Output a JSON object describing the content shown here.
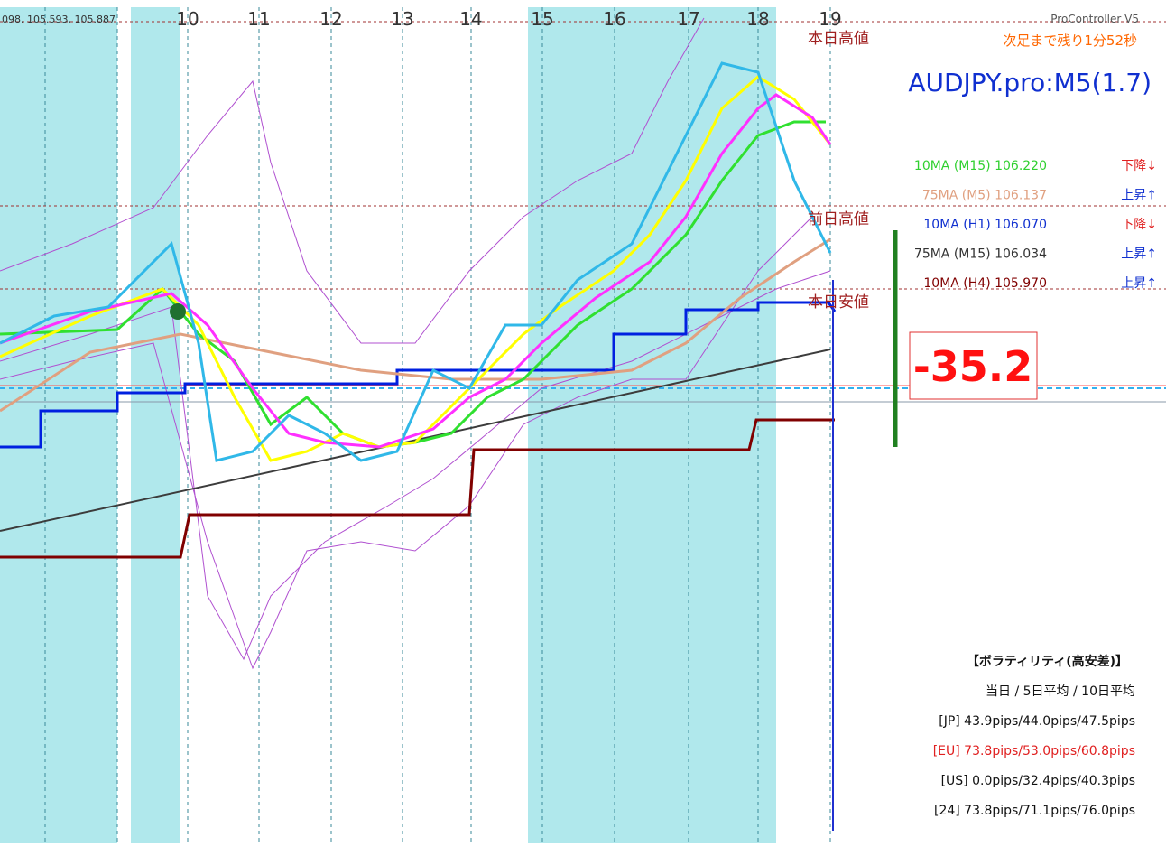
{
  "header": {
    "price_info": "098, 105.593, 105.887",
    "tool": "ProController V5",
    "countdown": "次足まで残り1分52秒",
    "symbol": "AUDJPY.pro:M5(1.7)"
  },
  "time_axis": [
    "10",
    "11",
    "12",
    "13",
    "14",
    "15",
    "16",
    "17",
    "18",
    "19"
  ],
  "levels": {
    "today_high": "本日高値",
    "prev_high": "前日高値",
    "today_low": "本日安値"
  },
  "moving_averages": [
    {
      "label": "10MA (M15) 106.220",
      "trend": "下降↓"
    },
    {
      "label": "75MA (M5)  106.137",
      "trend": "上昇↑"
    },
    {
      "label": "10MA (H1)  106.070",
      "trend": "下降↓"
    },
    {
      "label": "75MA (M15) 106.034",
      "trend": "上昇↑"
    },
    {
      "label": "10MA (H4)  105.970",
      "trend": "上昇↑"
    }
  ],
  "pips": "-35.2",
  "volatility": {
    "title": "【ボラティリティ(高安差)】",
    "subtitle": "当日 / 5日平均 / 10日平均",
    "rows": [
      "[JP] 43.9pips/44.0pips/47.5pips",
      "[EU] 73.8pips/53.0pips/60.8pips",
      "[US]  0.0pips/32.4pips/40.3pips",
      "[24] 73.8pips/71.1pips/76.0pips"
    ]
  }
}
